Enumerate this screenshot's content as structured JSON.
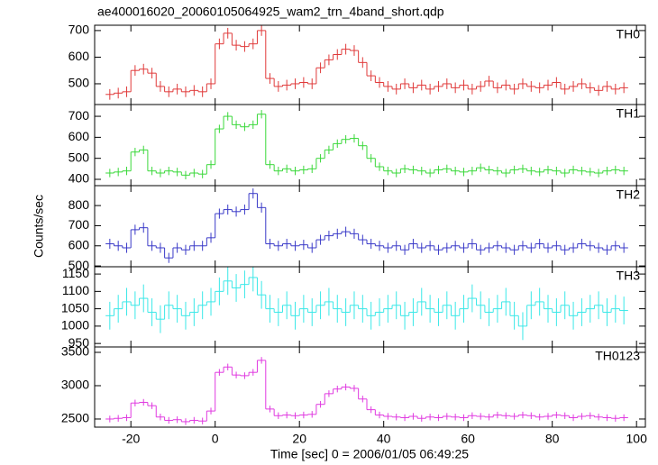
{
  "chart_data": [
    {
      "type": "step",
      "title": "ae400016020_20060105064925_wam2_trn_4band_short.qdp",
      "label": "TH0",
      "color": "#e03a3a",
      "error": 20,
      "x": [
        -25,
        -23,
        -21,
        -19,
        -17,
        -15,
        -13,
        -11,
        -9,
        -7,
        -5,
        -3,
        -1,
        1,
        3,
        5,
        7,
        9,
        11,
        13,
        15,
        17,
        19,
        21,
        23,
        25,
        27,
        29,
        31,
        33,
        35,
        37,
        39,
        41,
        43,
        45,
        47,
        49,
        51,
        53,
        55,
        57,
        59,
        61,
        63,
        65,
        67,
        69,
        71,
        73,
        75,
        77,
        79,
        81,
        83,
        85,
        87,
        89,
        91,
        93,
        95,
        97
      ],
      "values": [
        460,
        465,
        470,
        550,
        555,
        540,
        490,
        470,
        480,
        470,
        475,
        470,
        500,
        650,
        690,
        645,
        640,
        650,
        700,
        520,
        490,
        495,
        500,
        505,
        500,
        560,
        590,
        610,
        630,
        625,
        580,
        530,
        505,
        490,
        480,
        500,
        485,
        495,
        480,
        490,
        500,
        485,
        495,
        480,
        490,
        510,
        485,
        495,
        480,
        500,
        490,
        485,
        495,
        505,
        480,
        490,
        500,
        485,
        475,
        490,
        480,
        485
      ],
      "xlim": [
        -28.6,
        102.1
      ],
      "xticks": [
        -20,
        0,
        20,
        40,
        60,
        80,
        100
      ],
      "ylim": [
        422,
        720
      ],
      "yticks": [
        500,
        600,
        700
      ]
    },
    {
      "type": "step",
      "label": "TH1",
      "color": "#3ad83a",
      "error": 20,
      "x": [
        -25,
        -23,
        -21,
        -19,
        -17,
        -15,
        -13,
        -11,
        -9,
        -7,
        -5,
        -3,
        -1,
        1,
        3,
        5,
        7,
        9,
        11,
        13,
        15,
        17,
        19,
        21,
        23,
        25,
        27,
        29,
        31,
        33,
        35,
        37,
        39,
        41,
        43,
        45,
        47,
        49,
        51,
        53,
        55,
        57,
        59,
        61,
        63,
        65,
        67,
        69,
        71,
        73,
        75,
        77,
        79,
        81,
        83,
        85,
        87,
        89,
        91,
        93,
        95,
        97
      ],
      "values": [
        430,
        435,
        440,
        530,
        540,
        440,
        430,
        440,
        435,
        420,
        430,
        425,
        470,
        640,
        700,
        660,
        650,
        660,
        710,
        470,
        440,
        450,
        440,
        445,
        450,
        500,
        540,
        570,
        590,
        595,
        560,
        500,
        460,
        440,
        430,
        450,
        445,
        440,
        430,
        445,
        450,
        440,
        435,
        440,
        455,
        445,
        440,
        430,
        445,
        450,
        440,
        435,
        445,
        440,
        430,
        445,
        440,
        435,
        430,
        440,
        445,
        440
      ],
      "xlim": [
        -28.6,
        102.1
      ],
      "xticks": [
        -20,
        0,
        20,
        40,
        60,
        80,
        100
      ],
      "ylim": [
        370,
        756
      ],
      "yticks": [
        400,
        500,
        600,
        700
      ]
    },
    {
      "type": "step",
      "label": "TH2",
      "ylabel": "Counts/sec",
      "color": "#3a3ac8",
      "error": 25,
      "x": [
        -25,
        -23,
        -21,
        -19,
        -17,
        -15,
        -13,
        -11,
        -9,
        -7,
        -5,
        -3,
        -1,
        1,
        3,
        5,
        7,
        9,
        11,
        13,
        15,
        17,
        19,
        21,
        23,
        25,
        27,
        29,
        31,
        33,
        35,
        37,
        39,
        41,
        43,
        45,
        47,
        49,
        51,
        53,
        55,
        57,
        59,
        61,
        63,
        65,
        67,
        69,
        71,
        73,
        75,
        77,
        79,
        81,
        83,
        85,
        87,
        89,
        91,
        93,
        95,
        97
      ],
      "values": [
        610,
        600,
        590,
        680,
        690,
        600,
        590,
        540,
        590,
        580,
        600,
        600,
        640,
        760,
        780,
        770,
        780,
        860,
        790,
        610,
        600,
        610,
        600,
        605,
        590,
        630,
        650,
        660,
        670,
        660,
        630,
        610,
        600,
        590,
        600,
        580,
        610,
        590,
        600,
        580,
        590,
        600,
        590,
        610,
        580,
        590,
        600,
        590,
        580,
        600,
        590,
        610,
        590,
        600,
        580,
        590,
        610,
        600,
        590,
        580,
        600,
        590
      ],
      "xlim": [
        -28.6,
        102.1
      ],
      "xticks": [
        -20,
        0,
        20,
        40,
        60,
        80,
        100
      ],
      "ylim": [
        496,
        899
      ],
      "yticks": [
        500,
        600,
        700,
        800
      ]
    },
    {
      "type": "step",
      "label": "TH3",
      "color": "#3ae8e8",
      "error": 40,
      "x": [
        -25,
        -23,
        -21,
        -19,
        -17,
        -15,
        -13,
        -11,
        -9,
        -7,
        -5,
        -3,
        -1,
        1,
        3,
        5,
        7,
        9,
        11,
        13,
        15,
        17,
        19,
        21,
        23,
        25,
        27,
        29,
        31,
        33,
        35,
        37,
        39,
        41,
        43,
        45,
        47,
        49,
        51,
        53,
        55,
        57,
        59,
        61,
        63,
        65,
        67,
        69,
        71,
        73,
        75,
        77,
        79,
        81,
        83,
        85,
        87,
        89,
        91,
        93,
        95,
        97
      ],
      "values": [
        1030,
        1050,
        1070,
        1060,
        1080,
        1040,
        1020,
        1060,
        1050,
        1030,
        1040,
        1060,
        1070,
        1100,
        1130,
        1110,
        1120,
        1140,
        1090,
        1050,
        1040,
        1060,
        1030,
        1050,
        1040,
        1060,
        1070,
        1050,
        1040,
        1060,
        1050,
        1030,
        1040,
        1050,
        1060,
        1030,
        1040,
        1070,
        1050,
        1040,
        1060,
        1030,
        1050,
        1080,
        1060,
        1040,
        1050,
        1070,
        1030,
        1000,
        1060,
        1070,
        1050,
        1040,
        1060,
        1030,
        1040,
        1050,
        1060,
        1040,
        1050,
        1045
      ],
      "xlim": [
        -28.6,
        102.1
      ],
      "xticks": [
        -20,
        0,
        20,
        40,
        60,
        80,
        100
      ],
      "ylim": [
        940,
        1171
      ],
      "yticks": [
        950,
        1000,
        1050,
        1100,
        1150
      ]
    },
    {
      "type": "step",
      "label": "TH0123",
      "xlabel": "Time [sec] 0 = 2006/01/05 06:49:25",
      "color": "#e03ae0",
      "error": 50,
      "x": [
        -25,
        -23,
        -21,
        -19,
        -17,
        -15,
        -13,
        -11,
        -9,
        -7,
        -5,
        -3,
        -1,
        1,
        3,
        5,
        7,
        9,
        11,
        13,
        15,
        17,
        19,
        21,
        23,
        25,
        27,
        29,
        31,
        33,
        35,
        37,
        39,
        41,
        43,
        45,
        47,
        49,
        51,
        53,
        55,
        57,
        59,
        61,
        63,
        65,
        67,
        69,
        71,
        73,
        75,
        77,
        79,
        81,
        83,
        85,
        87,
        89,
        91,
        93,
        95,
        97
      ],
      "values": [
        2500,
        2510,
        2520,
        2740,
        2750,
        2700,
        2530,
        2480,
        2490,
        2460,
        2480,
        2470,
        2620,
        3200,
        3280,
        3160,
        3150,
        3200,
        3380,
        2650,
        2550,
        2560,
        2550,
        2560,
        2570,
        2720,
        2880,
        2950,
        2980,
        2960,
        2800,
        2640,
        2560,
        2540,
        2530,
        2520,
        2540,
        2510,
        2530,
        2520,
        2540,
        2530,
        2520,
        2550,
        2540,
        2530,
        2560,
        2550,
        2540,
        2560,
        2550,
        2530,
        2540,
        2560,
        2550,
        2520,
        2540,
        2550,
        2530,
        2520,
        2510,
        2520
      ],
      "xlim": [
        -28.6,
        102.1
      ],
      "xticks": [
        -20,
        0,
        20,
        40,
        60,
        80,
        100
      ],
      "ylim": [
        2378,
        3581
      ],
      "yticks": [
        2500,
        3000,
        3500
      ]
    }
  ]
}
